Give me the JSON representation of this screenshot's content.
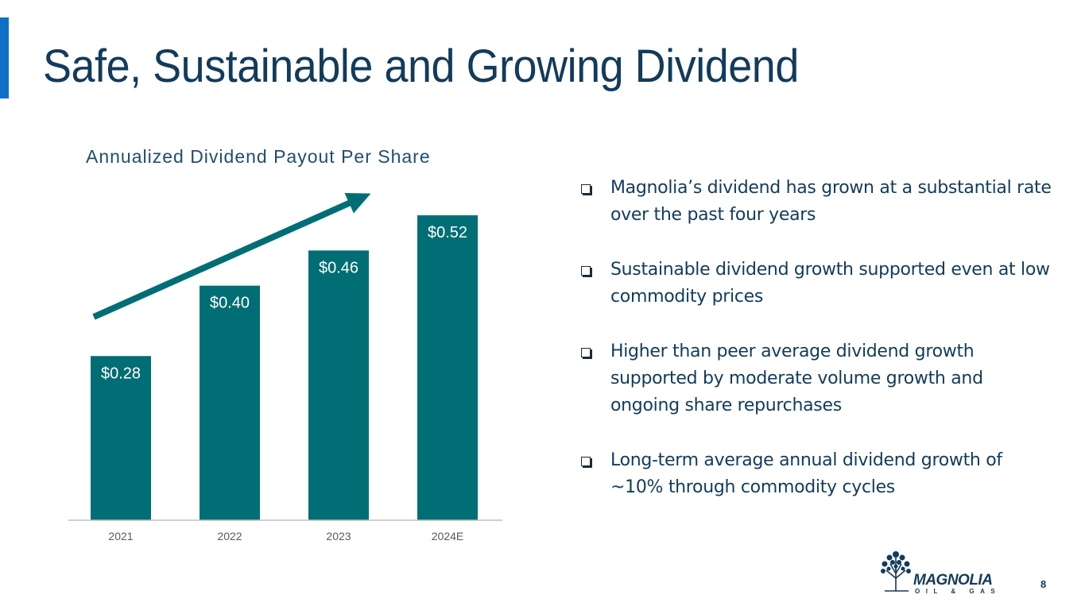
{
  "slide": {
    "title": "Safe, Sustainable and Growing Dividend",
    "page_number": "8"
  },
  "chart_data": {
    "type": "bar",
    "title": "Annualized Dividend Payout Per Share",
    "categories": [
      "2021",
      "2022",
      "2023",
      "2024E"
    ],
    "values": [
      0.28,
      0.4,
      0.46,
      0.52
    ],
    "data_labels": [
      "$0.28",
      "$0.40",
      "$0.46",
      "$0.52"
    ],
    "xlabel": "",
    "ylabel": "",
    "ylim": [
      0,
      0.6
    ],
    "grid": false,
    "annotation": "upward trend arrow",
    "bar_color": "#006e74",
    "arrow_color": "#006e74"
  },
  "bullets": [
    "Magnolia’s dividend has grown at a substantial rate over the past four years",
    "Sustainable dividend growth supported even at low commodity prices",
    "Higher than peer average dividend growth supported by moderate volume growth and ongoing share repurchases",
    "Long-term average annual dividend growth of ~10% through commodity cycles"
  ],
  "logo": {
    "name": "MAGNOLIA",
    "sub": "OIL & GAS",
    "icon": "tree-icon"
  },
  "colors": {
    "accent": "#0f6fc6",
    "title": "#123b5c",
    "teal": "#006e74"
  }
}
